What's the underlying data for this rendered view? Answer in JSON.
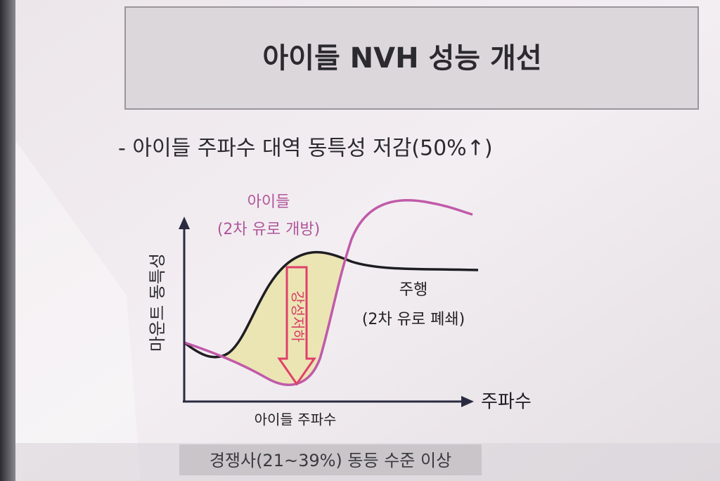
{
  "header": {
    "title": "아이들 NVH 성능 개선"
  },
  "bullet": "- 아이들 주파수 대역 동특성 저감(50%↑)",
  "diagram": {
    "y_axis_label": "마운트 동특성",
    "x_axis_label": "주파수",
    "x_marker_label": "아이들 주파수",
    "idle_curve": {
      "label": "아이들",
      "note": "(2차 유로 개방)"
    },
    "drive_curve": {
      "label": "주행",
      "note": "(2차 유로 폐쇄)"
    },
    "arrow_label": "강성저하"
  },
  "footer": "경쟁사(21~39%) 동등 수준 이상"
}
